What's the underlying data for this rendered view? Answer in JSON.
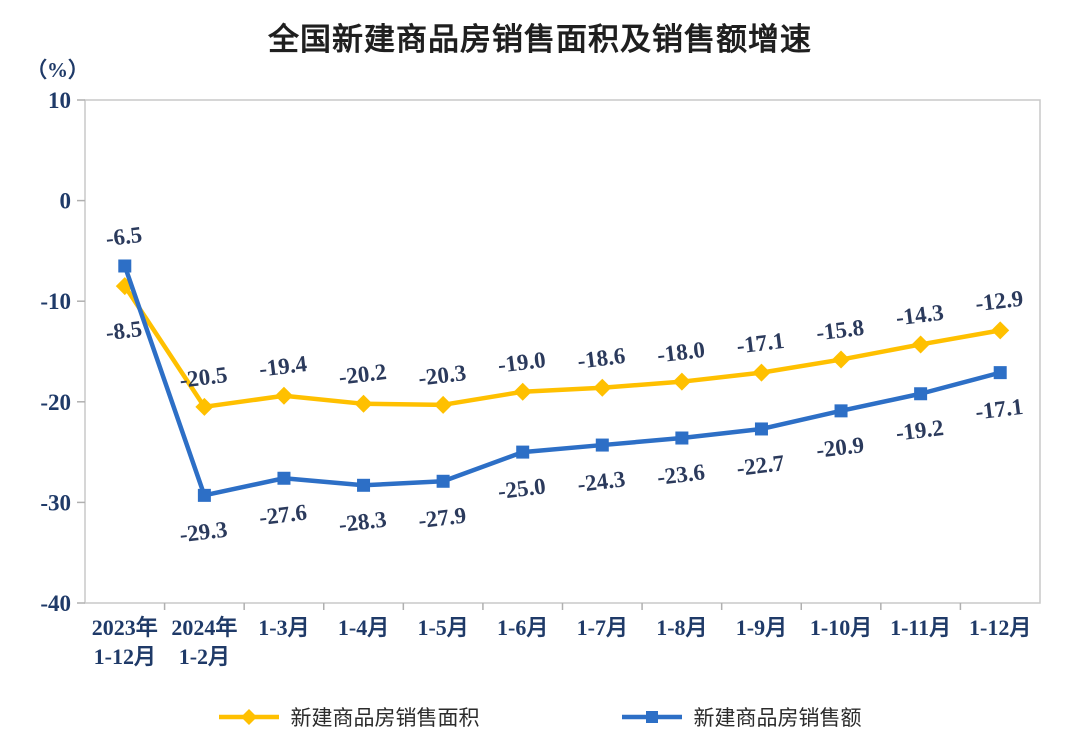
{
  "chart_data": {
    "type": "line",
    "title": "全国新建商品房销售面积及销售额增速",
    "unit_label": "（%）",
    "categories": [
      "2023年\n1-12月",
      "2024年\n1-2月",
      "1-3月",
      "1-4月",
      "1-5月",
      "1-6月",
      "1-7月",
      "1-8月",
      "1-9月",
      "1-10月",
      "1-11月",
      "1-12月"
    ],
    "series": [
      {
        "name": "新建商品房销售面积",
        "color": "#FFC000",
        "marker": "diamond",
        "values": [
          -8.5,
          -20.5,
          -19.4,
          -20.2,
          -20.3,
          -19.0,
          -18.6,
          -18.0,
          -17.1,
          -15.8,
          -14.3,
          -12.9
        ],
        "labels": [
          "-8.5",
          "-20.5",
          "-19.4",
          "-20.2",
          "-20.3",
          "-19.0",
          "-18.6",
          "-18.0",
          "-17.1",
          "-15.8",
          "-14.3",
          "-12.9"
        ],
        "label_sides": [
          "below-far",
          "above",
          "above",
          "above",
          "above",
          "above",
          "above",
          "above",
          "above",
          "above",
          "above",
          "above"
        ]
      },
      {
        "name": "新建商品房销售额",
        "color": "#2D6FC6",
        "marker": "square",
        "values": [
          -6.5,
          -29.3,
          -27.6,
          -28.3,
          -27.9,
          -25.0,
          -24.3,
          -23.6,
          -22.7,
          -20.9,
          -19.2,
          -17.1
        ],
        "labels": [
          "-6.5",
          "-29.3",
          "-27.6",
          "-28.3",
          "-27.9",
          "-25.0",
          "-24.3",
          "-23.6",
          "-22.7",
          "-20.9",
          "-19.2",
          "-17.1"
        ],
        "label_sides": [
          "above",
          "below",
          "below",
          "below",
          "below",
          "below",
          "below",
          "below",
          "below",
          "below",
          "below",
          "below"
        ]
      }
    ],
    "ylim": [
      -40,
      10
    ],
    "yticks": [
      10,
      0,
      -10,
      -20,
      -30,
      -40
    ],
    "grid": false,
    "legend_position": "bottom-center",
    "colors": {
      "title_text": "#1f1f1f",
      "axis_text": "#1f3a68",
      "data_label_text": "#2b3a5c",
      "legend_text": "#2b2b2b",
      "plot_border": "#c8c8c8",
      "tick": "#b0b0b0",
      "plot_background": "#ffffff"
    }
  }
}
